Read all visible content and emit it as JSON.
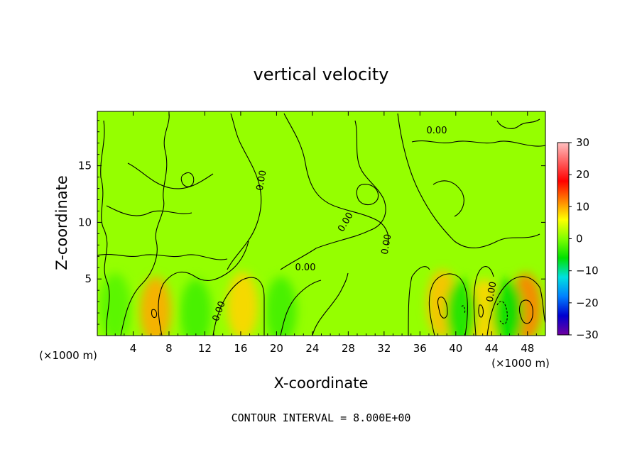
{
  "chart_data": {
    "type": "heatmap",
    "title": "vertical velocity",
    "xlabel": "X-coordinate",
    "ylabel": "Z-coordinate",
    "x_units_left": "(×1000 m)",
    "x_units_right": "(×1000 m)",
    "xlim": [
      0,
      50
    ],
    "ylim": [
      0,
      19.8
    ],
    "x_ticks": [
      4,
      8,
      12,
      16,
      20,
      24,
      28,
      32,
      36,
      40,
      44,
      48
    ],
    "y_ticks": [
      5,
      10,
      15
    ],
    "colorbar": {
      "range": [
        -30,
        30
      ],
      "ticks": [
        30,
        20,
        10,
        0,
        -10,
        -20,
        -30
      ],
      "stops": [
        "#7000a0",
        "#0000d0",
        "#0080ff",
        "#00e0e0",
        "#00e000",
        "#80ff00",
        "#ffff00",
        "#ff8000",
        "#ff0000",
        "#ff6060",
        "#ffc0c0"
      ]
    },
    "contour_interval_text": "CONTOUR INTERVAL = 8.000E+00",
    "contour_labels": [
      "0.00",
      "0.00",
      "0.00",
      "0.00",
      "0.00",
      "0.00",
      "0.00"
    ],
    "background_value": 1,
    "features": [
      {
        "x": 6.5,
        "z": 2.2,
        "value": 10
      },
      {
        "x": 16.2,
        "z": 2.6,
        "value": 8
      },
      {
        "x": 38.5,
        "z": 2.8,
        "value": 9
      },
      {
        "x": 43.2,
        "z": 2.0,
        "value": 8
      },
      {
        "x": 47.8,
        "z": 2.5,
        "value": 12
      },
      {
        "x": 45.8,
        "z": 2.0,
        "value": -6
      },
      {
        "x": 40.6,
        "z": 2.0,
        "value": -5
      },
      {
        "x": 11.0,
        "z": 2.0,
        "value": -3
      },
      {
        "x": 20.5,
        "z": 2.2,
        "value": -3
      },
      {
        "x": 2.0,
        "z": 2.5,
        "value": -2
      }
    ]
  }
}
